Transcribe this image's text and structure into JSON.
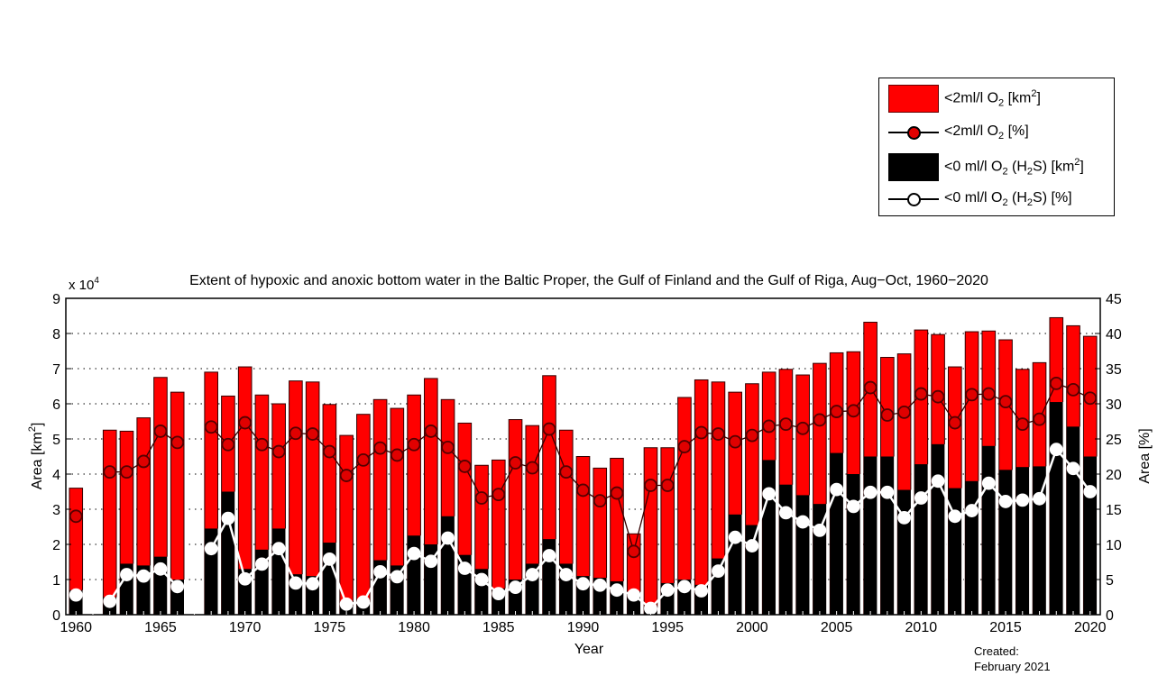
{
  "chart_data": {
    "type": "bar",
    "title": "Extent of hypoxic and anoxic bottom water in the Baltic Proper, the Gulf of Finland and the Gulf of Riga, Aug−Oct, 1960−2020",
    "xlabel": "Year",
    "ylabel_left": "Area [km²]",
    "ylabel_left_parts": {
      "base": "Area [km",
      "sup": "2",
      "end": "]"
    },
    "ylabel_right": "Area [%]",
    "y_left_multiplier": "x 10",
    "y_left_multiplier_exp": "4",
    "ylim_left": [
      0,
      9
    ],
    "ylim_right": [
      0,
      45
    ],
    "xlim": [
      1959.4,
      2020.6
    ],
    "y_left_ticks": [
      0,
      1,
      2,
      3,
      4,
      5,
      6,
      7,
      8,
      9
    ],
    "y_right_ticks": [
      0,
      5,
      10,
      15,
      20,
      25,
      30,
      35,
      40,
      45
    ],
    "x_ticks": [
      1960,
      1965,
      1970,
      1975,
      1980,
      1985,
      1990,
      1995,
      2000,
      2005,
      2010,
      2015,
      2020
    ],
    "grid": "horizontal dotted",
    "legend_placement": "top-right, outside plot",
    "colors": {
      "hypoxic": "#ff0000",
      "anoxic": "#000000",
      "hypoxic_marker": "#e00000",
      "anoxic_marker": "#ffffff"
    },
    "years": [
      1960,
      1961,
      1962,
      1963,
      1964,
      1965,
      1966,
      1967,
      1968,
      1969,
      1970,
      1971,
      1972,
      1973,
      1974,
      1975,
      1976,
      1977,
      1978,
      1979,
      1980,
      1981,
      1982,
      1983,
      1984,
      1985,
      1986,
      1987,
      1988,
      1989,
      1990,
      1991,
      1992,
      1993,
      1994,
      1995,
      1996,
      1997,
      1998,
      1999,
      2000,
      2001,
      2002,
      2003,
      2004,
      2005,
      2006,
      2007,
      2008,
      2009,
      2010,
      2011,
      2012,
      2013,
      2014,
      2015,
      2016,
      2017,
      2018,
      2019,
      2020
    ],
    "series": [
      {
        "name": "<2ml/l O2 [km2]",
        "kind": "bar",
        "axis": "left",
        "unit": "x10^4 km2",
        "values": [
          3.6,
          null,
          5.25,
          5.22,
          5.6,
          6.75,
          6.33,
          null,
          6.9,
          6.22,
          7.05,
          6.25,
          6.0,
          6.65,
          6.62,
          5.98,
          5.1,
          5.7,
          6.12,
          5.87,
          6.25,
          6.72,
          6.12,
          5.45,
          4.25,
          4.4,
          5.55,
          5.38,
          6.8,
          5.25,
          4.5,
          4.17,
          4.45,
          2.3,
          4.75,
          4.75,
          6.18,
          6.68,
          6.62,
          6.33,
          6.57,
          6.9,
          6.98,
          6.82,
          7.15,
          7.45,
          7.48,
          8.32,
          7.32,
          7.42,
          8.1,
          7.97,
          7.05,
          8.05,
          8.07,
          7.82,
          6.98,
          7.17,
          8.45,
          8.22,
          7.92
        ]
      },
      {
        "name": "<0 ml/l O2 (H2S) [km2]",
        "kind": "bar",
        "axis": "left",
        "unit": "x10^4 km2",
        "values": [
          0.7,
          null,
          0.5,
          1.45,
          1.4,
          1.65,
          1.0,
          null,
          2.45,
          3.5,
          1.3,
          1.85,
          2.45,
          1.15,
          1.1,
          2.05,
          0.25,
          0.35,
          1.55,
          1.4,
          2.25,
          2.0,
          2.8,
          1.7,
          1.3,
          0.75,
          1.0,
          1.45,
          2.15,
          1.45,
          1.1,
          1.05,
          0.95,
          0.65,
          0.2,
          0.9,
          1.0,
          0.85,
          1.6,
          2.85,
          2.55,
          4.4,
          3.7,
          3.4,
          3.15,
          4.6,
          4.0,
          4.5,
          4.5,
          3.55,
          4.28,
          4.85,
          3.6,
          3.8,
          4.8,
          4.12,
          4.2,
          4.22,
          6.05,
          5.35,
          4.5
        ]
      },
      {
        "name": "<2ml/l O2 [%]",
        "kind": "line",
        "axis": "right",
        "unit": "%",
        "values": [
          14.0,
          null,
          20.3,
          20.3,
          21.8,
          26.1,
          24.5,
          null,
          26.7,
          24.2,
          27.3,
          24.2,
          23.2,
          25.8,
          25.7,
          23.2,
          19.8,
          22.0,
          23.7,
          22.7,
          24.2,
          26.1,
          23.8,
          21.1,
          16.6,
          17.1,
          21.6,
          20.9,
          26.4,
          20.3,
          17.7,
          16.2,
          17.3,
          9.0,
          18.4,
          18.4,
          23.9,
          25.9,
          25.7,
          24.6,
          25.5,
          26.8,
          27.1,
          26.5,
          27.7,
          28.9,
          29.0,
          32.3,
          28.4,
          28.8,
          31.4,
          31.0,
          27.3,
          31.3,
          31.4,
          30.3,
          27.1,
          27.8,
          32.9,
          32.0,
          30.8
        ]
      },
      {
        "name": "<0 ml/l O2 (H2S) [%]",
        "kind": "line",
        "axis": "right",
        "unit": "%",
        "values": [
          2.8,
          null,
          1.9,
          5.7,
          5.5,
          6.5,
          4.0,
          null,
          9.4,
          13.7,
          5.1,
          7.2,
          9.4,
          4.5,
          4.4,
          7.9,
          1.5,
          1.8,
          6.1,
          5.4,
          8.7,
          7.6,
          10.9,
          6.6,
          5.0,
          3.0,
          3.9,
          5.7,
          8.4,
          5.7,
          4.4,
          4.2,
          3.5,
          2.8,
          0.9,
          3.5,
          4.0,
          3.4,
          6.2,
          11.0,
          9.8,
          17.2,
          14.5,
          13.2,
          12.0,
          17.8,
          15.4,
          17.4,
          17.4,
          13.8,
          16.6,
          19.0,
          14.0,
          14.8,
          18.7,
          16.1,
          16.3,
          16.5,
          23.5,
          20.8,
          17.5
        ]
      }
    ]
  },
  "legend": {
    "items": [
      {
        "label": "<2ml/l O",
        "sub": "2",
        "tail": " [km",
        "sup": "2",
        "end": "]"
      },
      {
        "label": "<2ml/l O",
        "sub": "2",
        "tail": " [%]",
        "sup": "",
        "end": ""
      },
      {
        "label": "<0 ml/l O",
        "sub": "2",
        "tail": " (H",
        "sub2": "2",
        "tail2": "S) [km",
        "sup": "2",
        "end": "]"
      },
      {
        "label": "<0 ml/l O",
        "sub": "2",
        "tail": " (H",
        "sub2": "2",
        "tail2": "S) [%]",
        "sup": "",
        "end": ""
      }
    ]
  },
  "footer": {
    "created_label": "Created:",
    "created_date": "February 2021"
  }
}
